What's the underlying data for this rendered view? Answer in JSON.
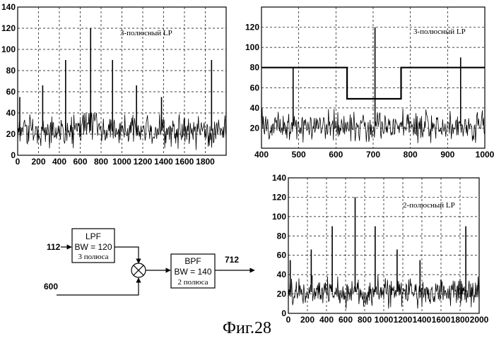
{
  "caption": "Фиг.28",
  "chart_data": [
    {
      "id": "top-left",
      "type": "line",
      "title": "",
      "annotation": "3-полюсный LP",
      "xlabel": "",
      "ylabel": "",
      "xlim": [
        0,
        2000
      ],
      "ylim": [
        0,
        140
      ],
      "x_ticks": [
        0,
        200,
        400,
        600,
        800,
        1000,
        1200,
        1400,
        1600,
        1800
      ],
      "y_ticks": [
        0,
        20,
        40,
        60,
        80,
        100,
        120,
        140
      ],
      "grid": true,
      "noise_baseline": 23,
      "noise_band": [
        5,
        40
      ],
      "spikes": [
        {
          "x": 20,
          "y": 55
        },
        {
          "x": 240,
          "y": 66
        },
        {
          "x": 460,
          "y": 90
        },
        {
          "x": 700,
          "y": 120
        },
        {
          "x": 910,
          "y": 90
        },
        {
          "x": 1140,
          "y": 66
        },
        {
          "x": 1380,
          "y": 55
        },
        {
          "x": 1600,
          "y": 35
        },
        {
          "x": 1860,
          "y": 90
        }
      ]
    },
    {
      "id": "top-right",
      "type": "line",
      "title": "",
      "annotation": "3-полюсный LP",
      "xlabel": "",
      "ylabel": "",
      "xlim": [
        400,
        1000
      ],
      "ylim": [
        0,
        140
      ],
      "x_ticks": [
        400,
        500,
        600,
        700,
        800,
        900,
        1000
      ],
      "y_ticks": [
        20,
        40,
        60,
        80,
        100,
        120
      ],
      "grid": true,
      "noise_baseline": 22,
      "noise_band": [
        5,
        40
      ],
      "spikes": [
        {
          "x": 485,
          "y": 80
        },
        {
          "x": 705,
          "y": 120
        },
        {
          "x": 935,
          "y": 90
        }
      ],
      "series": [
        {
          "type": "step",
          "x": [
            400,
            630,
            630,
            775,
            775,
            1000
          ],
          "y": [
            80,
            80,
            49,
            49,
            80,
            80
          ]
        }
      ]
    },
    {
      "id": "bottom-right",
      "type": "line",
      "title": "",
      "annotation": "2-полюсный LP",
      "xlabel": "",
      "ylabel": "",
      "xlim": [
        0,
        2000
      ],
      "ylim": [
        0,
        140
      ],
      "x_ticks": [
        0,
        200,
        400,
        600,
        800,
        1000,
        1200,
        1400,
        1600,
        1800,
        2000
      ],
      "y_ticks": [
        0,
        20,
        40,
        60,
        80,
        100,
        120,
        140
      ],
      "grid": true,
      "noise_baseline": 22,
      "noise_band": [
        5,
        40
      ],
      "spikes": [
        {
          "x": 20,
          "y": 55
        },
        {
          "x": 240,
          "y": 66
        },
        {
          "x": 460,
          "y": 90
        },
        {
          "x": 700,
          "y": 120
        },
        {
          "x": 910,
          "y": 90
        },
        {
          "x": 1140,
          "y": 66
        },
        {
          "x": 1380,
          "y": 55
        },
        {
          "x": 1600,
          "y": 35
        },
        {
          "x": 1860,
          "y": 90
        }
      ]
    }
  ],
  "diagram": {
    "input_signal": "112",
    "lpf": {
      "name": "LPF",
      "bw": "BW = 120",
      "poles": "3 полюса"
    },
    "mixer_input": "600",
    "bpf": {
      "name": "BPF",
      "bw": "BW = 140",
      "poles": "2 полюса"
    },
    "output_signal": "712"
  }
}
